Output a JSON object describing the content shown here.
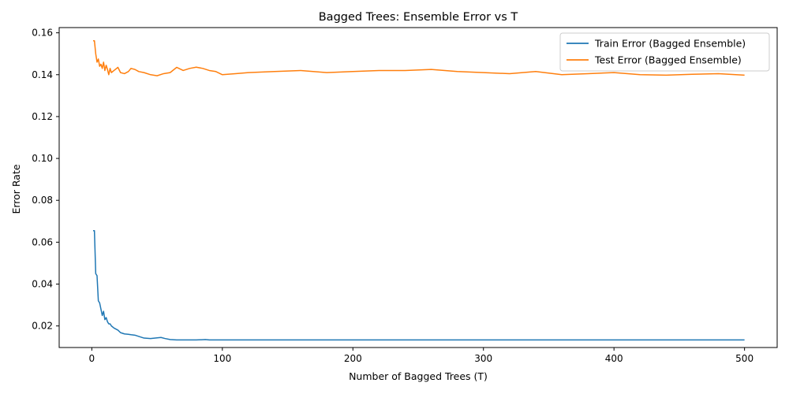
{
  "chart_data": {
    "type": "line",
    "title": "Bagged Trees: Ensemble Error vs T",
    "xlabel": "Number of Bagged Trees (T)",
    "ylabel": "Error Rate",
    "xlim": [
      -25,
      525
    ],
    "ylim": [
      0.0097,
      0.1625
    ],
    "x_ticks": [
      0,
      100,
      200,
      300,
      400,
      500
    ],
    "x_tick_labels": [
      "0",
      "100",
      "200",
      "300",
      "400",
      "500"
    ],
    "y_ticks": [
      0.02,
      0.04,
      0.06,
      0.08,
      0.1,
      0.12,
      0.14,
      0.16
    ],
    "y_tick_labels": [
      "0.02",
      "0.04",
      "0.06",
      "0.08",
      "0.10",
      "0.12",
      "0.14",
      "0.16"
    ],
    "grid": false,
    "legend_position": "top-right",
    "series": [
      {
        "name": "Train Error (Bagged Ensemble)",
        "color": "#1f77b4",
        "x": [
          1,
          2,
          3,
          4,
          5,
          6,
          7,
          8,
          9,
          10,
          11,
          12,
          13,
          14,
          15,
          17,
          20,
          22,
          25,
          28,
          30,
          33,
          36,
          40,
          45,
          50,
          53,
          56,
          60,
          65,
          70,
          80,
          87,
          90,
          100,
          150,
          200,
          300,
          400,
          500
        ],
        "y": [
          0.0655,
          0.0655,
          0.045,
          0.044,
          0.032,
          0.031,
          0.028,
          0.025,
          0.027,
          0.023,
          0.024,
          0.022,
          0.021,
          0.021,
          0.02,
          0.019,
          0.018,
          0.0168,
          0.0162,
          0.016,
          0.0158,
          0.0156,
          0.015,
          0.0142,
          0.014,
          0.0143,
          0.0145,
          0.014,
          0.0135,
          0.0133,
          0.0133,
          0.0133,
          0.0135,
          0.0133,
          0.0133,
          0.0133,
          0.0133,
          0.0133,
          0.0133,
          0.0133
        ]
      },
      {
        "name": "Test Error (Bagged Ensemble)",
        "color": "#ff7f0e",
        "x": [
          1,
          2,
          3,
          4,
          5,
          6,
          7,
          8,
          9,
          10,
          11,
          12,
          13,
          14,
          15,
          17,
          20,
          22,
          25,
          28,
          30,
          33,
          36,
          40,
          45,
          50,
          55,
          60,
          65,
          70,
          75,
          80,
          85,
          90,
          95,
          100,
          110,
          120,
          140,
          160,
          180,
          200,
          220,
          240,
          260,
          280,
          300,
          320,
          340,
          360,
          380,
          400,
          420,
          440,
          460,
          480,
          500
        ],
        "y": [
          0.1562,
          0.1562,
          0.15,
          0.146,
          0.1475,
          0.144,
          0.145,
          0.143,
          0.146,
          0.142,
          0.1445,
          0.1425,
          0.14,
          0.143,
          0.141,
          0.142,
          0.1435,
          0.141,
          0.1405,
          0.1415,
          0.143,
          0.1425,
          0.1415,
          0.141,
          0.14,
          0.1395,
          0.1405,
          0.141,
          0.1435,
          0.142,
          0.143,
          0.1436,
          0.143,
          0.142,
          0.1415,
          0.14,
          0.1405,
          0.141,
          0.1415,
          0.142,
          0.141,
          0.1415,
          0.142,
          0.142,
          0.1425,
          0.1415,
          0.141,
          0.1405,
          0.1415,
          0.14,
          0.1405,
          0.141,
          0.14,
          0.1398,
          0.1402,
          0.1405,
          0.1398
        ]
      }
    ]
  }
}
